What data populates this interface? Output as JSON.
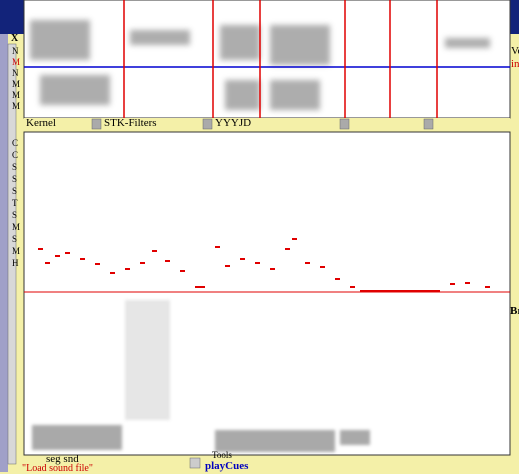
{
  "sidebar": {
    "close": "X",
    "letters": [
      "N",
      "M",
      "N",
      "M",
      "M",
      "M",
      "C",
      "C",
      "S",
      "S",
      "S",
      "T",
      "S",
      "M",
      "S",
      "M",
      "H"
    ]
  },
  "tabs": [
    "Kernel",
    "STK-Filters",
    "YYYJD"
  ],
  "right_edge": [
    "Vo",
    "in",
    "Br"
  ],
  "bottom": {
    "segment_label": "seg snd",
    "status": "\"Load sound file\"",
    "cue": "playCues",
    "tool_label": "Tools"
  }
}
